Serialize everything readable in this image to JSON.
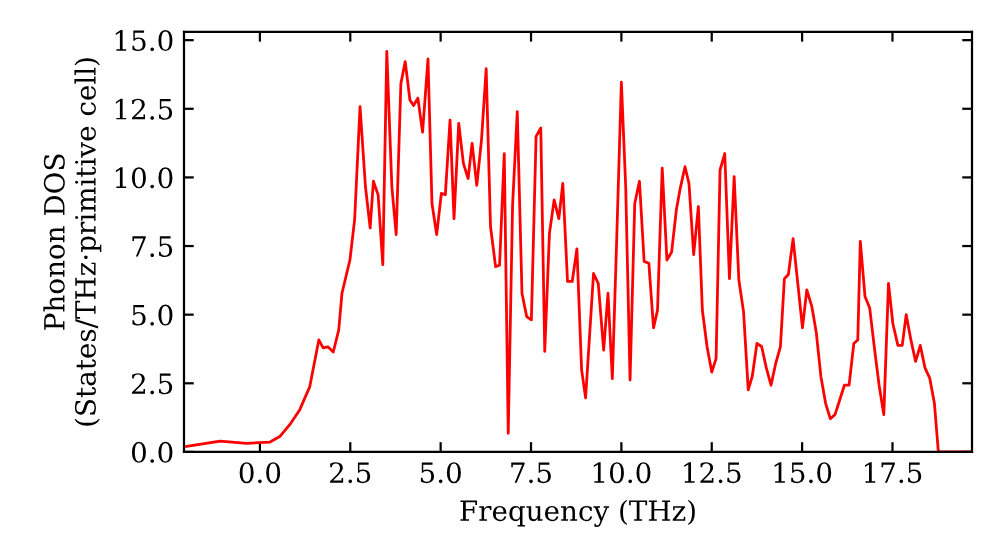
{
  "chart_data": {
    "type": "line",
    "xlabel": "Frequency (THz)",
    "ylabel": "Phonon DOS\n(States/THz·primitive cell)",
    "x": [
      -2.03,
      -1.1,
      -0.37,
      0.28,
      0.55,
      0.83,
      1.1,
      1.38,
      1.63,
      1.75,
      1.88,
      2.03,
      2.18,
      2.27,
      2.49,
      2.62,
      2.77,
      2.92,
      3.05,
      3.14,
      3.27,
      3.4,
      3.51,
      3.65,
      3.77,
      3.9,
      4.02,
      4.15,
      4.25,
      4.37,
      4.5,
      4.65,
      4.76,
      4.89,
      5.02,
      5.13,
      5.26,
      5.37,
      5.5,
      5.63,
      5.76,
      5.87,
      6.0,
      6.13,
      6.26,
      6.38,
      6.52,
      6.63,
      6.76,
      6.87,
      6.99,
      7.12,
      7.25,
      7.38,
      7.51,
      7.64,
      7.77,
      7.88,
      8.01,
      8.14,
      8.27,
      8.38,
      8.51,
      8.64,
      8.77,
      8.9,
      9.01,
      9.23,
      9.36,
      9.51,
      9.63,
      9.75,
      9.87,
      10.0,
      10.12,
      10.24,
      10.37,
      10.5,
      10.63,
      10.76,
      10.89,
      11.0,
      11.13,
      11.26,
      11.39,
      11.52,
      11.63,
      11.76,
      11.87,
      12.0,
      12.13,
      12.24,
      12.37,
      12.5,
      12.62,
      12.73,
      12.86,
      12.99,
      13.12,
      13.25,
      13.38,
      13.51,
      13.62,
      13.75,
      13.88,
      14.01,
      14.14,
      14.27,
      14.4,
      14.51,
      14.62,
      14.75,
      14.88,
      15.01,
      15.13,
      15.27,
      15.39,
      15.52,
      15.65,
      15.78,
      15.91,
      16.04,
      16.17,
      16.3,
      16.43,
      16.54,
      16.61,
      16.74,
      16.87,
      17.0,
      17.13,
      17.26,
      17.39,
      17.51,
      17.65,
      17.77,
      17.88,
      18.01,
      18.14,
      18.27,
      18.4,
      18.53,
      18.66,
      18.77,
      19.7
    ],
    "series": [
      {
        "color": "#ff0000",
        "values": [
          0.2,
          0.39,
          0.31,
          0.36,
          0.56,
          1.0,
          1.53,
          2.38,
          4.08,
          3.79,
          3.83,
          3.64,
          4.44,
          5.78,
          6.99,
          8.45,
          12.58,
          9.66,
          8.16,
          9.86,
          9.37,
          6.82,
          14.59,
          9.66,
          7.92,
          13.42,
          14.22,
          12.82,
          12.62,
          12.89,
          11.65,
          14.32,
          9.05,
          7.92,
          9.42,
          9.37,
          12.09,
          8.5,
          11.97,
          10.51,
          9.96,
          11.24,
          9.71,
          11.36,
          13.96,
          8.21,
          6.75,
          6.8,
          10.87,
          0.68,
          8.98,
          12.4,
          5.78,
          4.93,
          4.81,
          11.49,
          11.8,
          3.66,
          7.96,
          9.18,
          8.5,
          9.78,
          6.21,
          6.21,
          7.4,
          2.99,
          1.97,
          6.5,
          6.14,
          3.71,
          5.78,
          2.67,
          7.72,
          13.47,
          9.66,
          2.62,
          9.05,
          9.86,
          6.94,
          6.87,
          4.52,
          5.17,
          10.34,
          6.99,
          7.28,
          8.81,
          9.61,
          10.39,
          9.78,
          7.19,
          8.94,
          5.17,
          3.84,
          2.91,
          3.4,
          10.27,
          10.87,
          6.31,
          10.03,
          6.26,
          5.1,
          2.26,
          2.75,
          3.95,
          3.84,
          3.06,
          2.43,
          3.23,
          3.84,
          6.31,
          6.46,
          7.77,
          6.14,
          4.52,
          5.9,
          5.29,
          4.37,
          2.75,
          1.77,
          1.21,
          1.36,
          1.89,
          2.43,
          2.43,
          3.95,
          4.08,
          7.67,
          5.66,
          5.24,
          3.79,
          2.43,
          1.36,
          6.14,
          4.68,
          3.88,
          3.88,
          5.0,
          4.08,
          3.3,
          3.88,
          3.06,
          2.69,
          1.77,
          0.0,
          0.0
        ]
      }
    ],
    "xlim": [
      -2.1,
      19.7
    ],
    "ylim": [
      0,
      15.3
    ],
    "xticks": [
      {
        "value": 0,
        "label": "0.0"
      },
      {
        "value": 2.5,
        "label": "2.5"
      },
      {
        "value": 5,
        "label": "5.0"
      },
      {
        "value": 7.5,
        "label": "7.5"
      },
      {
        "value": 10,
        "label": "10.0"
      },
      {
        "value": 12.5,
        "label": "12.5"
      },
      {
        "value": 15,
        "label": "15.0"
      },
      {
        "value": 17.5,
        "label": "17.5"
      }
    ],
    "yticks": [
      {
        "value": 0,
        "label": "0.0"
      },
      {
        "value": 2.5,
        "label": "2.5"
      },
      {
        "value": 5,
        "label": "5.0"
      },
      {
        "value": 7.5,
        "label": "7.5"
      },
      {
        "value": 10,
        "label": "10.0"
      },
      {
        "value": 12.5,
        "label": "12.5"
      },
      {
        "value": 15,
        "label": "15.0"
      }
    ],
    "grid": false,
    "line_style": "solid",
    "marker": "none"
  }
}
